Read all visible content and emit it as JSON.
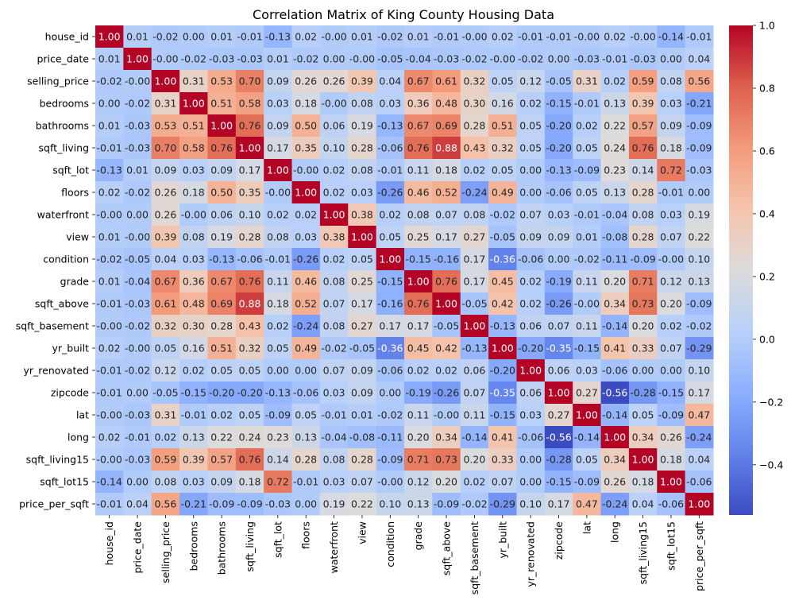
{
  "chart_data": {
    "type": "heatmap",
    "title": "Correlation Matrix of King County Housing Data",
    "variables": [
      "house_id",
      "price_date",
      "selling_price",
      "bedrooms",
      "bathrooms",
      "sqft_living",
      "sqft_lot",
      "floors",
      "waterfront",
      "view",
      "condition",
      "grade",
      "sqft_above",
      "sqft_basement",
      "yr_built",
      "yr_renovated",
      "zipcode",
      "lat",
      "long",
      "sqft_living15",
      "sqft_lot15",
      "price_per_sqft"
    ],
    "matrix": [
      [
        1.0,
        0.01,
        -0.02,
        0.0,
        0.01,
        -0.01,
        -0.13,
        0.02,
        -0.0,
        0.01,
        -0.02,
        0.01,
        -0.01,
        -0.0,
        0.02,
        -0.01,
        -0.01,
        -0.0,
        0.02,
        -0.0,
        -0.14,
        -0.01
      ],
      [
        0.01,
        1.0,
        -0.0,
        -0.02,
        -0.03,
        -0.03,
        0.01,
        -0.02,
        0.0,
        -0.0,
        -0.05,
        -0.04,
        -0.03,
        -0.02,
        -0.0,
        -0.02,
        0.0,
        -0.03,
        -0.01,
        -0.03,
        0.0,
        0.04
      ],
      [
        -0.02,
        -0.0,
        1.0,
        0.31,
        0.53,
        0.7,
        0.09,
        0.26,
        0.26,
        0.39,
        0.04,
        0.67,
        0.61,
        0.32,
        0.05,
        0.12,
        -0.05,
        0.31,
        0.02,
        0.59,
        0.08,
        0.56
      ],
      [
        0.0,
        -0.02,
        0.31,
        1.0,
        0.51,
        0.58,
        0.03,
        0.18,
        -0.0,
        0.08,
        0.03,
        0.36,
        0.48,
        0.3,
        0.16,
        0.02,
        -0.15,
        -0.01,
        0.13,
        0.39,
        0.03,
        -0.21
      ],
      [
        0.01,
        -0.03,
        0.53,
        0.51,
        1.0,
        0.76,
        0.09,
        0.5,
        0.06,
        0.19,
        -0.13,
        0.67,
        0.69,
        0.28,
        0.51,
        0.05,
        -0.2,
        0.02,
        0.22,
        0.57,
        0.09,
        -0.09
      ],
      [
        -0.01,
        -0.03,
        0.7,
        0.58,
        0.76,
        1.0,
        0.17,
        0.35,
        0.1,
        0.28,
        -0.06,
        0.76,
        0.88,
        0.43,
        0.32,
        0.05,
        -0.2,
        0.05,
        0.24,
        0.76,
        0.18,
        -0.09
      ],
      [
        -0.13,
        0.01,
        0.09,
        0.03,
        0.09,
        0.17,
        1.0,
        -0.0,
        0.02,
        0.08,
        -0.01,
        0.11,
        0.18,
        0.02,
        0.05,
        0.0,
        -0.13,
        -0.09,
        0.23,
        0.14,
        0.72,
        -0.03
      ],
      [
        0.02,
        -0.02,
        0.26,
        0.18,
        0.5,
        0.35,
        -0.0,
        1.0,
        0.02,
        0.03,
        -0.26,
        0.46,
        0.52,
        -0.24,
        0.49,
        0.0,
        -0.06,
        0.05,
        0.13,
        0.28,
        -0.01,
        0.0
      ],
      [
        -0.0,
        0.0,
        0.26,
        -0.0,
        0.06,
        0.1,
        0.02,
        0.02,
        1.0,
        0.38,
        0.02,
        0.08,
        0.07,
        0.08,
        -0.02,
        0.07,
        0.03,
        -0.01,
        -0.04,
        0.08,
        0.03,
        0.19
      ],
      [
        0.01,
        -0.0,
        0.39,
        0.08,
        0.19,
        0.28,
        0.08,
        0.03,
        0.38,
        1.0,
        0.05,
        0.25,
        0.17,
        0.27,
        -0.05,
        0.09,
        0.09,
        0.01,
        -0.08,
        0.28,
        0.07,
        0.22
      ],
      [
        -0.02,
        -0.05,
        0.04,
        0.03,
        -0.13,
        -0.06,
        -0.01,
        -0.26,
        0.02,
        0.05,
        1.0,
        -0.15,
        -0.16,
        0.17,
        -0.36,
        -0.06,
        0.0,
        -0.02,
        -0.11,
        -0.09,
        -0.0,
        0.1
      ],
      [
        0.01,
        -0.04,
        0.67,
        0.36,
        0.67,
        0.76,
        0.11,
        0.46,
        0.08,
        0.25,
        -0.15,
        1.0,
        0.76,
        0.17,
        0.45,
        0.02,
        -0.19,
        0.11,
        0.2,
        0.71,
        0.12,
        0.13
      ],
      [
        -0.01,
        -0.03,
        0.61,
        0.48,
        0.69,
        0.88,
        0.18,
        0.52,
        0.07,
        0.17,
        -0.16,
        0.76,
        1.0,
        -0.05,
        0.42,
        0.02,
        -0.26,
        -0.0,
        0.34,
        0.73,
        0.2,
        -0.09
      ],
      [
        -0.0,
        -0.02,
        0.32,
        0.3,
        0.28,
        0.43,
        0.02,
        -0.24,
        0.08,
        0.27,
        0.17,
        0.17,
        -0.05,
        1.0,
        -0.13,
        0.06,
        0.07,
        0.11,
        -0.14,
        0.2,
        0.02,
        -0.02
      ],
      [
        0.02,
        -0.0,
        0.05,
        0.16,
        0.51,
        0.32,
        0.05,
        0.49,
        -0.02,
        -0.05,
        -0.36,
        0.45,
        0.42,
        -0.13,
        1.0,
        -0.2,
        -0.35,
        -0.15,
        0.41,
        0.33,
        0.07,
        -0.29
      ],
      [
        -0.01,
        -0.02,
        0.12,
        0.02,
        0.05,
        0.05,
        0.0,
        0.0,
        0.07,
        0.09,
        -0.06,
        0.02,
        0.02,
        0.06,
        -0.2,
        1.0,
        0.06,
        0.03,
        -0.06,
        0.0,
        0.0,
        0.1
      ],
      [
        -0.01,
        0.0,
        -0.05,
        -0.15,
        -0.2,
        -0.2,
        -0.13,
        -0.06,
        0.03,
        0.09,
        0.0,
        -0.19,
        -0.26,
        0.07,
        -0.35,
        0.06,
        1.0,
        0.27,
        -0.56,
        -0.28,
        -0.15,
        0.17
      ],
      [
        -0.0,
        -0.03,
        0.31,
        -0.01,
        0.02,
        0.05,
        -0.09,
        0.05,
        -0.01,
        0.01,
        -0.02,
        0.11,
        -0.0,
        0.11,
        -0.15,
        0.03,
        0.27,
        1.0,
        -0.14,
        0.05,
        -0.09,
        0.47
      ],
      [
        0.02,
        -0.01,
        0.02,
        0.13,
        0.22,
        0.24,
        0.23,
        0.13,
        -0.04,
        -0.08,
        -0.11,
        0.2,
        0.34,
        -0.14,
        0.41,
        -0.06,
        -0.56,
        -0.14,
        1.0,
        0.34,
        0.26,
        -0.24
      ],
      [
        -0.0,
        -0.03,
        0.59,
        0.39,
        0.57,
        0.76,
        0.14,
        0.28,
        0.08,
        0.28,
        -0.09,
        0.71,
        0.73,
        0.2,
        0.33,
        0.0,
        -0.28,
        0.05,
        0.34,
        1.0,
        0.18,
        0.04
      ],
      [
        -0.14,
        0.0,
        0.08,
        0.03,
        0.09,
        0.18,
        0.72,
        -0.01,
        0.03,
        0.07,
        -0.0,
        0.12,
        0.2,
        0.02,
        0.07,
        0.0,
        -0.15,
        -0.09,
        0.26,
        0.18,
        1.0,
        -0.06
      ],
      [
        -0.01,
        0.04,
        0.56,
        -0.21,
        -0.09,
        -0.09,
        -0.03,
        0.0,
        0.19,
        0.22,
        0.1,
        0.13,
        -0.09,
        -0.02,
        -0.29,
        0.1,
        0.17,
        0.47,
        -0.24,
        0.04,
        -0.06,
        1.0
      ]
    ],
    "value_format": "2 decimals",
    "colormap": "coolwarm",
    "colormap_colors": [
      "#3b4cc0",
      "#6282ea",
      "#8db0fe",
      "#b8d0f9",
      "#dddcdc",
      "#f5c4ac",
      "#f39b7b",
      "#de604d",
      "#b40426"
    ],
    "vmin": -0.56,
    "vmax": 1.0,
    "colorbar_ticks": [
      1.0,
      0.8,
      0.6,
      0.4,
      0.2,
      0.0,
      -0.2,
      -0.4
    ],
    "colorbar_tick_labels": [
      "1.0",
      "0.8",
      "0.6",
      "0.4",
      "0.2",
      "0.0",
      "−0.2",
      "−0.4"
    ],
    "legend": "colorbar-right",
    "grid": false
  }
}
